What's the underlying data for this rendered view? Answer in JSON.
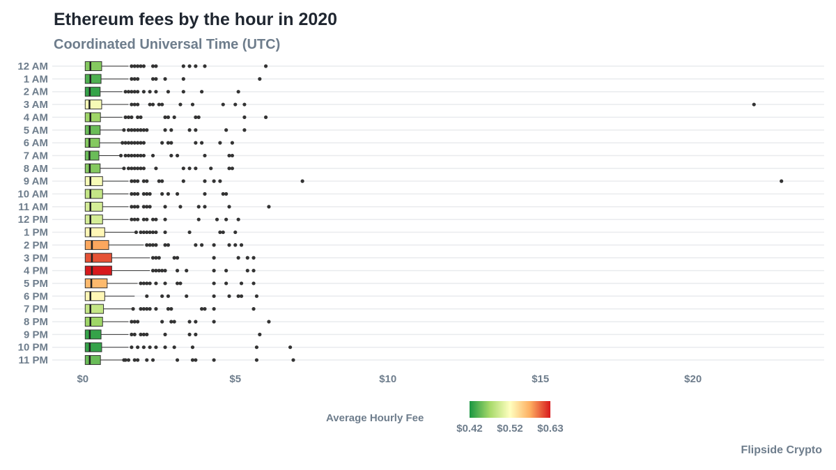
{
  "chart_data": {
    "type": "boxplot",
    "title": "Ethereum fees by the hour in 2020",
    "subtitle": "Coordinated Universal Time (UTC)",
    "xlabel": "",
    "ylabel": "",
    "xlim": [
      -1,
      24.3
    ],
    "xticks": [
      0,
      5,
      10,
      15,
      20
    ],
    "xtick_labels": [
      "$0",
      "$5",
      "$10",
      "$15",
      "$20"
    ],
    "grid": "horizontal",
    "categories": [
      "12 AM",
      "1 AM",
      "2 AM",
      "3 AM",
      "4 AM",
      "5 AM",
      "6 AM",
      "7 AM",
      "8 AM",
      "9 AM",
      "10 AM",
      "11 AM",
      "12 PM",
      "1 PM",
      "2 PM",
      "3 PM",
      "4 PM",
      "5 PM",
      "6 PM",
      "7 PM",
      "8 PM",
      "9 PM",
      "10 PM",
      "11 PM"
    ],
    "boxes": [
      {
        "hour": "12 AM",
        "q1": 0.08,
        "median": 0.25,
        "q3": 0.62,
        "whisker_high": 1.5,
        "avg_fee": 0.46,
        "outliers": [
          1.6,
          1.7,
          1.8,
          1.9,
          2.0,
          2.3,
          2.4,
          3.3,
          3.5,
          3.7,
          4.0,
          6.0
        ]
      },
      {
        "hour": "1 AM",
        "q1": 0.08,
        "median": 0.25,
        "q3": 0.6,
        "whisker_high": 1.5,
        "avg_fee": 0.44,
        "outliers": [
          1.6,
          1.7,
          1.8,
          2.3,
          2.4,
          2.7,
          3.3,
          5.8
        ]
      },
      {
        "hour": "2 AM",
        "q1": 0.08,
        "median": 0.23,
        "q3": 0.57,
        "whisker_high": 1.3,
        "avg_fee": 0.43,
        "outliers": [
          1.4,
          1.5,
          1.6,
          1.7,
          1.8,
          2.0,
          2.2,
          2.4,
          2.8,
          3.3,
          3.9,
          5.1
        ]
      },
      {
        "hour": "3 AM",
        "q1": 0.08,
        "median": 0.22,
        "q3": 0.62,
        "whisker_high": 1.5,
        "avg_fee": 0.52,
        "outliers": [
          1.6,
          1.7,
          1.8,
          2.2,
          2.3,
          2.5,
          2.6,
          3.2,
          3.6,
          4.6,
          5.0,
          5.3,
          22.0
        ]
      },
      {
        "hour": "4 AM",
        "q1": 0.08,
        "median": 0.25,
        "q3": 0.58,
        "whisker_high": 1.3,
        "avg_fee": 0.47,
        "outliers": [
          1.4,
          1.5,
          1.6,
          1.8,
          1.9,
          2.7,
          2.8,
          3.0,
          3.7,
          3.8,
          5.3,
          6.0
        ]
      },
      {
        "hour": "5 AM",
        "q1": 0.08,
        "median": 0.23,
        "q3": 0.57,
        "whisker_high": 1.3,
        "avg_fee": 0.45,
        "outliers": [
          1.35,
          1.5,
          1.6,
          1.7,
          1.8,
          1.9,
          2.0,
          2.1,
          2.7,
          2.9,
          3.5,
          3.7,
          4.7,
          5.3
        ]
      },
      {
        "hour": "6 AM",
        "q1": 0.08,
        "median": 0.22,
        "q3": 0.55,
        "whisker_high": 1.3,
        "avg_fee": 0.46,
        "outliers": [
          1.3,
          1.4,
          1.5,
          1.6,
          1.7,
          1.8,
          1.9,
          2.0,
          2.6,
          2.8,
          2.9,
          3.7,
          3.9,
          4.5,
          4.9
        ]
      },
      {
        "hour": "7 AM",
        "q1": 0.08,
        "median": 0.22,
        "q3": 0.53,
        "whisker_high": 1.2,
        "avg_fee": 0.45,
        "outliers": [
          1.25,
          1.4,
          1.5,
          1.6,
          1.7,
          1.8,
          1.9,
          2.0,
          2.3,
          2.9,
          3.1,
          4.0,
          4.8,
          4.9
        ]
      },
      {
        "hour": "8 AM",
        "q1": 0.08,
        "median": 0.23,
        "q3": 0.57,
        "whisker_high": 1.3,
        "avg_fee": 0.46,
        "outliers": [
          1.35,
          1.5,
          1.6,
          1.7,
          1.8,
          1.9,
          2.0,
          2.4,
          3.3,
          3.5,
          3.7,
          4.2,
          4.8,
          4.9
        ]
      },
      {
        "hour": "9 AM",
        "q1": 0.08,
        "median": 0.25,
        "q3": 0.65,
        "whisker_high": 1.5,
        "avg_fee": 0.52,
        "outliers": [
          1.6,
          1.7,
          1.8,
          2.0,
          2.1,
          2.5,
          2.6,
          3.3,
          4.0,
          4.3,
          4.5,
          7.2,
          22.9
        ]
      },
      {
        "hour": "10 AM",
        "q1": 0.08,
        "median": 0.25,
        "q3": 0.65,
        "whisker_high": 1.5,
        "avg_fee": 0.49,
        "outliers": [
          1.6,
          1.7,
          1.8,
          2.0,
          2.1,
          2.2,
          2.6,
          2.8,
          3.1,
          4.0,
          4.6,
          4.7
        ]
      },
      {
        "hour": "11 AM",
        "q1": 0.08,
        "median": 0.25,
        "q3": 0.65,
        "whisker_high": 1.5,
        "avg_fee": 0.5,
        "outliers": [
          1.6,
          1.7,
          1.8,
          2.0,
          2.1,
          2.2,
          2.7,
          3.2,
          3.8,
          4.0,
          4.8,
          6.1
        ]
      },
      {
        "hour": "12 PM",
        "q1": 0.08,
        "median": 0.25,
        "q3": 0.65,
        "whisker_high": 1.5,
        "avg_fee": 0.5,
        "outliers": [
          1.6,
          1.7,
          1.8,
          2.0,
          2.1,
          2.3,
          2.4,
          2.7,
          3.8,
          4.4,
          4.7,
          5.1
        ]
      },
      {
        "hour": "1 PM",
        "q1": 0.08,
        "median": 0.25,
        "q3": 0.72,
        "whisker_high": 1.7,
        "avg_fee": 0.53,
        "outliers": [
          1.75,
          1.9,
          2.0,
          2.1,
          2.2,
          2.3,
          2.4,
          2.7,
          3.5,
          4.5,
          4.6,
          5.0
        ]
      },
      {
        "hour": "2 PM",
        "q1": 0.08,
        "median": 0.3,
        "q3": 0.85,
        "whisker_high": 2.0,
        "avg_fee": 0.58,
        "outliers": [
          2.1,
          2.2,
          2.3,
          2.4,
          2.7,
          2.8,
          3.7,
          3.9,
          4.3,
          4.8,
          5.0,
          5.2
        ]
      },
      {
        "hour": "3 PM",
        "q1": 0.08,
        "median": 0.3,
        "q3": 0.95,
        "whisker_high": 2.2,
        "avg_fee": 0.61,
        "outliers": [
          2.3,
          2.4,
          2.5,
          3.0,
          3.1,
          4.3,
          5.1,
          5.4,
          5.6
        ]
      },
      {
        "hour": "4 PM",
        "q1": 0.08,
        "median": 0.3,
        "q3": 0.95,
        "whisker_high": 2.2,
        "avg_fee": 0.63,
        "outliers": [
          2.3,
          2.4,
          2.5,
          2.6,
          2.7,
          3.1,
          3.4,
          4.3,
          4.7,
          5.4,
          5.6
        ]
      },
      {
        "hour": "5 PM",
        "q1": 0.08,
        "median": 0.28,
        "q3": 0.8,
        "whisker_high": 1.8,
        "avg_fee": 0.57,
        "outliers": [
          1.9,
          2.0,
          2.1,
          2.2,
          2.4,
          2.7,
          3.1,
          3.2,
          4.3,
          4.7,
          5.2,
          5.6
        ]
      },
      {
        "hour": "6 PM",
        "q1": 0.08,
        "median": 0.25,
        "q3": 0.72,
        "whisker_high": 1.7,
        "avg_fee": 0.53,
        "outliers": [
          2.1,
          2.6,
          2.8,
          3.4,
          4.3,
          4.8,
          5.1,
          5.2,
          5.7
        ]
      },
      {
        "hour": "7 PM",
        "q1": 0.08,
        "median": 0.25,
        "q3": 0.68,
        "whisker_high": 1.6,
        "avg_fee": 0.49,
        "outliers": [
          1.65,
          1.9,
          2.0,
          2.1,
          2.2,
          2.4,
          2.8,
          2.9,
          3.9,
          4.0,
          4.3,
          5.6
        ]
      },
      {
        "hour": "8 PM",
        "q1": 0.08,
        "median": 0.25,
        "q3": 0.65,
        "whisker_high": 1.5,
        "avg_fee": 0.47,
        "outliers": [
          1.6,
          1.7,
          1.8,
          2.6,
          2.9,
          3.0,
          3.5,
          3.7,
          4.3,
          6.1
        ]
      },
      {
        "hour": "9 PM",
        "q1": 0.08,
        "median": 0.23,
        "q3": 0.6,
        "whisker_high": 1.5,
        "avg_fee": 0.43,
        "outliers": [
          1.6,
          1.7,
          1.9,
          2.0,
          2.1,
          2.7,
          3.5,
          3.7,
          5.8
        ]
      },
      {
        "hour": "10 PM",
        "q1": 0.08,
        "median": 0.23,
        "q3": 0.62,
        "whisker_high": 1.5,
        "avg_fee": 0.43,
        "outliers": [
          1.6,
          1.8,
          2.0,
          2.2,
          2.4,
          2.7,
          3.0,
          3.6,
          5.7,
          6.8
        ]
      },
      {
        "hour": "11 PM",
        "q1": 0.08,
        "median": 0.23,
        "q3": 0.58,
        "whisker_high": 1.3,
        "avg_fee": 0.45,
        "outliers": [
          1.35,
          1.4,
          1.5,
          1.7,
          1.8,
          2.1,
          2.3,
          3.1,
          3.6,
          3.7,
          4.3,
          5.7,
          6.9
        ]
      }
    ],
    "legend": {
      "title": "Average Hourly Fee",
      "placement": "bottom",
      "min": 0.42,
      "mid": 0.52,
      "max": 0.63,
      "labels": [
        "$0.42",
        "$0.52",
        "$0.63"
      ],
      "colors": [
        "#1a9641",
        "#a6d96a",
        "#ffffbf",
        "#fdae61",
        "#d7191c"
      ]
    },
    "caption": "Flipside Crypto"
  }
}
